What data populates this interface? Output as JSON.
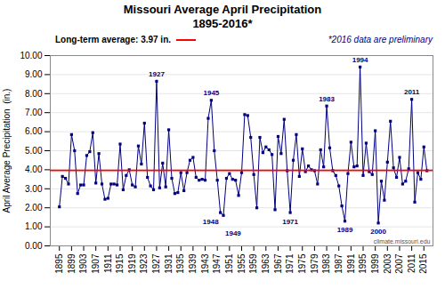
{
  "chart_data": {
    "type": "line",
    "title": "Missouri Average April Precipitation",
    "subtitle": "1895-2016*",
    "ylabel": "April Average Precipitation  (in.)",
    "note": "*2016 data are preliminary",
    "source": "climate.missouri.edu",
    "color": "#000080",
    "marker": "square",
    "grid": true,
    "reference_line": {
      "value": 3.97,
      "label": "Long-term average: 3.97 in.",
      "color": "#FF0000"
    },
    "xlim": [
      1892,
      2018
    ],
    "xticks": [
      1895,
      1899,
      1903,
      1907,
      1911,
      1915,
      1919,
      1923,
      1927,
      1931,
      1935,
      1939,
      1943,
      1947,
      1951,
      1955,
      1959,
      1963,
      1967,
      1971,
      1975,
      1979,
      1983,
      1987,
      1991,
      1995,
      1999,
      2003,
      2007,
      2011,
      2015
    ],
    "ylim": [
      0.0,
      10.0
    ],
    "yticks": [
      {
        "value": 0.0,
        "label": "0.00"
      },
      {
        "value": 1.0,
        "label": "1.00"
      },
      {
        "value": 2.0,
        "label": "2.00"
      },
      {
        "value": 3.0,
        "label": "3.00"
      },
      {
        "value": 4.0,
        "label": "4.00"
      },
      {
        "value": 5.0,
        "label": "5.00"
      },
      {
        "value": 6.0,
        "label": "6.00"
      },
      {
        "value": 7.0,
        "label": "7.00"
      },
      {
        "value": 8.0,
        "label": "8.00"
      },
      {
        "value": 9.0,
        "label": "9.00"
      },
      {
        "value": 10.0,
        "label": "10.00"
      }
    ],
    "annotations": [
      {
        "text": "1927",
        "x": 1927,
        "y": 8.65,
        "position": "above"
      },
      {
        "text": "1945",
        "x": 1945,
        "y": 7.65,
        "position": "above"
      },
      {
        "text": "1994",
        "x": 1994,
        "y": 9.4,
        "position": "above"
      },
      {
        "text": "1983",
        "x": 1983,
        "y": 7.35,
        "position": "above"
      },
      {
        "text": "2011",
        "x": 2011,
        "y": 7.7,
        "position": "above"
      },
      {
        "text": "1948",
        "x": 1948,
        "y": 1.75,
        "position": "below"
      },
      {
        "text": "1949",
        "x": 1949,
        "y": 1.6,
        "position": "below"
      },
      {
        "text": "1971",
        "x": 1971,
        "y": 1.75,
        "position": "below"
      },
      {
        "text": "1989",
        "x": 1989,
        "y": 1.3,
        "position": "below"
      },
      {
        "text": "2000",
        "x": 2000,
        "y": 1.2,
        "position": "below"
      }
    ],
    "x": [
      1895,
      1896,
      1897,
      1898,
      1899,
      1900,
      1901,
      1902,
      1903,
      1904,
      1905,
      1906,
      1907,
      1908,
      1909,
      1910,
      1911,
      1912,
      1913,
      1914,
      1915,
      1916,
      1917,
      1918,
      1919,
      1920,
      1921,
      1922,
      1923,
      1924,
      1925,
      1926,
      1927,
      1928,
      1929,
      1930,
      1931,
      1932,
      1933,
      1934,
      1935,
      1936,
      1937,
      1938,
      1939,
      1940,
      1941,
      1942,
      1943,
      1944,
      1945,
      1946,
      1947,
      1948,
      1949,
      1950,
      1951,
      1952,
      1953,
      1954,
      1955,
      1956,
      1957,
      1958,
      1959,
      1960,
      1961,
      1962,
      1963,
      1964,
      1965,
      1966,
      1967,
      1968,
      1969,
      1970,
      1971,
      1972,
      1973,
      1974,
      1975,
      1976,
      1977,
      1978,
      1979,
      1980,
      1981,
      1982,
      1983,
      1984,
      1985,
      1986,
      1987,
      1988,
      1989,
      1990,
      1991,
      1992,
      1993,
      1994,
      1995,
      1996,
      1997,
      1998,
      1999,
      2000,
      2001,
      2002,
      2003,
      2004,
      2005,
      2006,
      2007,
      2008,
      2009,
      2010,
      2011,
      2012,
      2013,
      2014,
      2015,
      2016
    ],
    "values": [
      2.05,
      3.65,
      3.55,
      3.25,
      5.85,
      5.0,
      2.75,
      3.2,
      3.2,
      4.75,
      4.95,
      5.95,
      3.3,
      4.85,
      3.25,
      2.45,
      2.5,
      3.25,
      3.25,
      3.2,
      5.35,
      2.95,
      3.7,
      4.0,
      3.2,
      3.1,
      5.25,
      4.3,
      6.45,
      3.6,
      3.15,
      2.95,
      8.65,
      3.05,
      4.35,
      3.1,
      6.1,
      3.55,
      2.75,
      2.8,
      3.85,
      2.9,
      3.85,
      4.5,
      4.65,
      3.6,
      3.45,
      3.5,
      3.45,
      6.7,
      7.65,
      5.0,
      3.45,
      1.75,
      1.6,
      3.55,
      3.8,
      3.5,
      3.45,
      2.65,
      3.85,
      6.9,
      6.85,
      5.7,
      3.75,
      2.0,
      5.7,
      4.9,
      5.2,
      5.05,
      4.8,
      1.9,
      5.75,
      4.85,
      6.65,
      3.95,
      1.75,
      4.5,
      5.85,
      3.65,
      5.1,
      3.9,
      4.2,
      4.0,
      3.95,
      3.25,
      5.05,
      4.15,
      7.35,
      5.15,
      3.95,
      3.7,
      3.15,
      2.1,
      1.3,
      3.8,
      5.45,
      4.15,
      4.2,
      9.4,
      3.7,
      5.4,
      3.9,
      3.75,
      6.05,
      1.2,
      3.4,
      2.4,
      4.4,
      6.55,
      4.1,
      3.6,
      4.65,
      3.25,
      3.4,
      4.05,
      7.7,
      2.3,
      3.85,
      3.5,
      5.2,
      3.95
    ]
  }
}
